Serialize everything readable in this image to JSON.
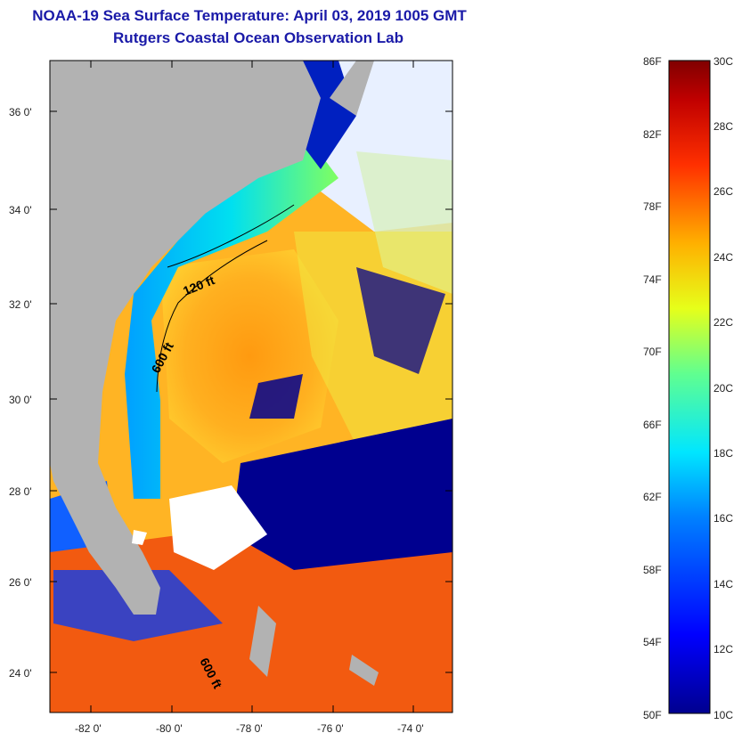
{
  "header": {
    "title": "NOAA-19 Sea Surface Temperature:  April 03, 2019 1005 GMT",
    "subtitle": "Rutgers Coastal Ocean Observation Lab"
  },
  "map": {
    "lon_range": [
      -83.0,
      -72.9
    ],
    "lat_range": [
      23.0,
      37.1
    ],
    "lat_ticks": [
      "24 0'",
      "26 0'",
      "28 0'",
      "30 0'",
      "32 0'",
      "34 0'",
      "36 0'"
    ],
    "lon_ticks": [
      "-82 0'",
      "-80 0'",
      "-78 0'",
      "-76 0'",
      "-74 0'"
    ],
    "contour_labels": [
      "120 ft",
      "600 ft",
      "600 ft"
    ],
    "colors": {
      "land": "#b2b2b2",
      "cloud": "#ffffff",
      "cold": "#00008f",
      "warm": "#f26a14"
    }
  },
  "colorbar": {
    "fahrenheit_labels": [
      "86F",
      "82F",
      "78F",
      "74F",
      "70F",
      "66F",
      "62F",
      "58F",
      "54F",
      "50F"
    ],
    "celsius_labels": [
      "30C",
      "28C",
      "26C",
      "24C",
      "22C",
      "20C",
      "18C",
      "16C",
      "14C",
      "12C",
      "10C"
    ],
    "range_c": [
      10,
      30
    ],
    "range_f": [
      50,
      86
    ]
  }
}
